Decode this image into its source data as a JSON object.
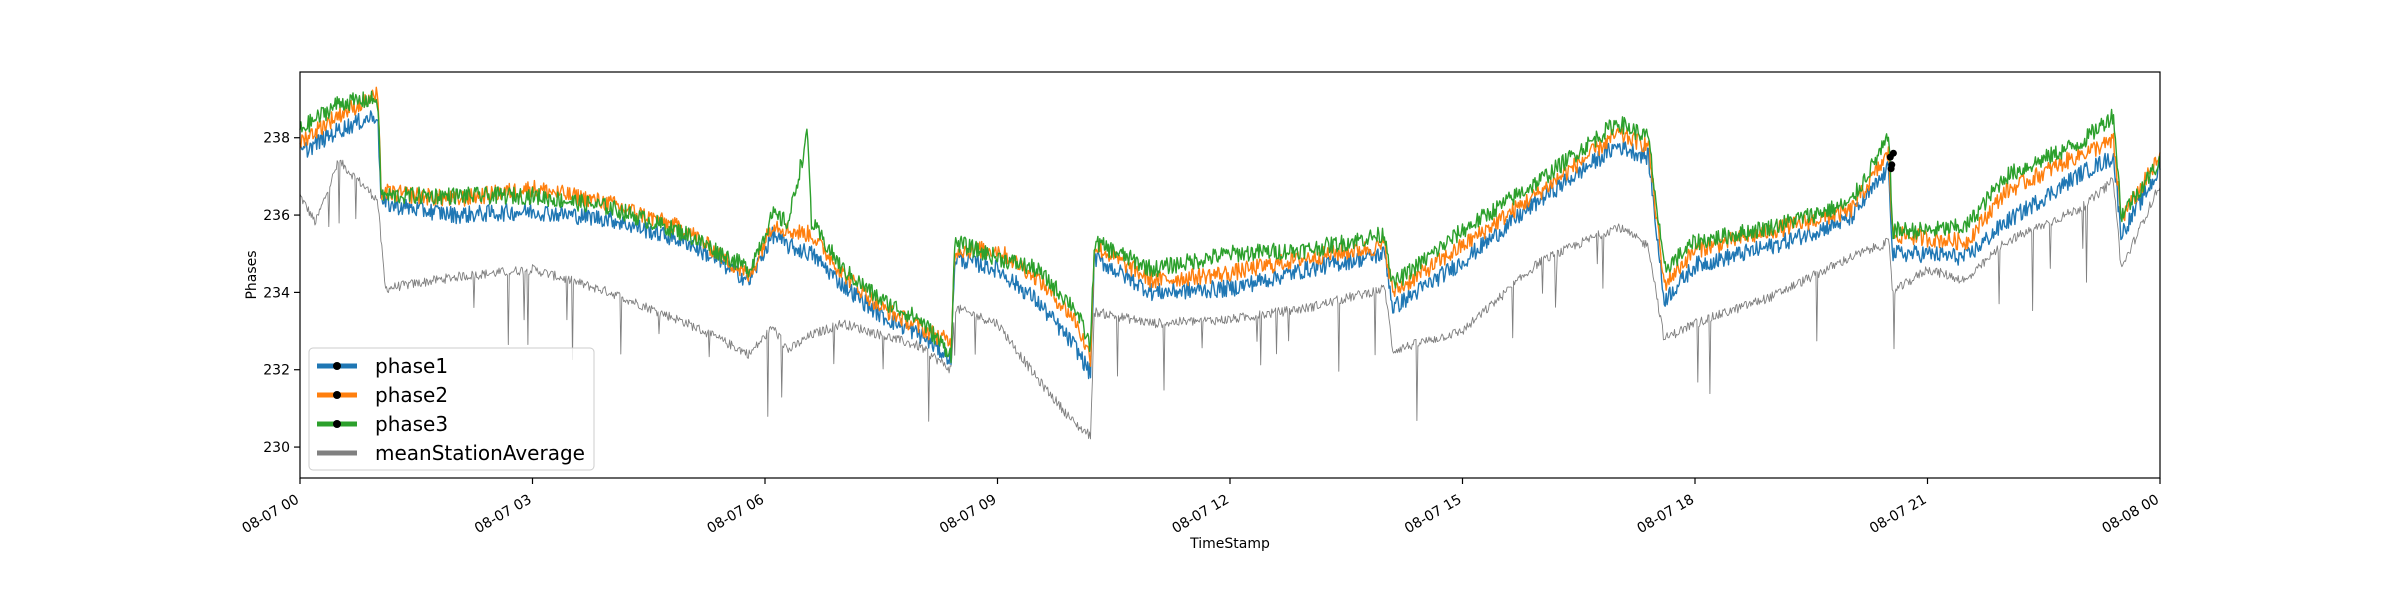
{
  "chart_data": {
    "type": "line",
    "xlabel": "TimeStamp",
    "ylabel": "Phases",
    "xlim": [
      "08-07 00:00",
      "08-08 00:00"
    ],
    "ylim": [
      229.2,
      239.7
    ],
    "x_ticks": [
      {
        "value": 0,
        "label": "08-07 00"
      },
      {
        "value": 3,
        "label": "08-07 03"
      },
      {
        "value": 6,
        "label": "08-07 06"
      },
      {
        "value": 9,
        "label": "08-07 09"
      },
      {
        "value": 12,
        "label": "08-07 12"
      },
      {
        "value": 15,
        "label": "08-07 15"
      },
      {
        "value": 18,
        "label": "08-07 18"
      },
      {
        "value": 21,
        "label": "08-07 21"
      },
      {
        "value": 24,
        "label": "08-08 00"
      }
    ],
    "y_ticks": [
      230,
      232,
      234,
      236,
      238
    ],
    "grid": false,
    "legend_position": "lower-left",
    "x_unit": "hours since 08-07 00:00",
    "series": [
      {
        "name": "phase1",
        "color": "#1f77b4",
        "marker": "black-dot",
        "points": [
          [
            0,
            237.6
          ],
          [
            0.5,
            238.2
          ],
          [
            1.0,
            238.6
          ],
          [
            1.05,
            236.3
          ],
          [
            2.0,
            236.0
          ],
          [
            3.0,
            236.1
          ],
          [
            4.0,
            235.9
          ],
          [
            5.0,
            235.3
          ],
          [
            5.8,
            234.3
          ],
          [
            6.1,
            235.5
          ],
          [
            6.3,
            235.2
          ],
          [
            6.6,
            235.0
          ],
          [
            7.0,
            234.2
          ],
          [
            7.5,
            233.4
          ],
          [
            8.0,
            232.9
          ],
          [
            8.4,
            232.3
          ],
          [
            8.45,
            234.9
          ],
          [
            9.0,
            234.6
          ],
          [
            9.5,
            233.8
          ],
          [
            10.0,
            232.6
          ],
          [
            10.2,
            231.9
          ],
          [
            10.25,
            234.9
          ],
          [
            11.0,
            234.0
          ],
          [
            12.0,
            234.1
          ],
          [
            13.0,
            234.6
          ],
          [
            14.0,
            235.0
          ],
          [
            14.1,
            233.6
          ],
          [
            15.0,
            234.8
          ],
          [
            16.0,
            236.4
          ],
          [
            17.0,
            237.8
          ],
          [
            17.4,
            237.5
          ],
          [
            17.6,
            233.8
          ],
          [
            18.0,
            234.7
          ],
          [
            19.0,
            235.2
          ],
          [
            20.0,
            235.9
          ],
          [
            20.5,
            237.2
          ],
          [
            20.55,
            235.0
          ],
          [
            21.0,
            235.0
          ],
          [
            21.5,
            234.9
          ],
          [
            22.0,
            235.8
          ],
          [
            23.0,
            237.1
          ],
          [
            23.4,
            237.5
          ],
          [
            23.5,
            235.5
          ],
          [
            24.0,
            237.2
          ]
        ]
      },
      {
        "name": "phase2",
        "color": "#ff7f0e",
        "marker": "black-dot",
        "points": [
          [
            0,
            237.9
          ],
          [
            0.5,
            238.6
          ],
          [
            1.0,
            239.1
          ],
          [
            1.05,
            236.6
          ],
          [
            2.0,
            236.4
          ],
          [
            3.0,
            236.7
          ],
          [
            4.0,
            236.3
          ],
          [
            5.0,
            235.6
          ],
          [
            5.8,
            234.4
          ],
          [
            6.1,
            235.8
          ],
          [
            6.3,
            235.6
          ],
          [
            6.6,
            235.5
          ],
          [
            7.0,
            234.5
          ],
          [
            7.5,
            233.6
          ],
          [
            8.0,
            233.1
          ],
          [
            8.4,
            232.7
          ],
          [
            8.45,
            235.1
          ],
          [
            9.0,
            235.1
          ],
          [
            9.5,
            234.4
          ],
          [
            10.0,
            233.3
          ],
          [
            10.2,
            232.3
          ],
          [
            10.25,
            235.2
          ],
          [
            11.0,
            234.3
          ],
          [
            12.0,
            234.5
          ],
          [
            13.0,
            234.9
          ],
          [
            14.0,
            235.2
          ],
          [
            14.1,
            234.0
          ],
          [
            15.0,
            235.2
          ],
          [
            16.0,
            236.6
          ],
          [
            17.0,
            238.1
          ],
          [
            17.4,
            237.8
          ],
          [
            17.6,
            234.2
          ],
          [
            18.0,
            235.1
          ],
          [
            19.0,
            235.6
          ],
          [
            20.0,
            236.1
          ],
          [
            20.5,
            237.6
          ],
          [
            20.55,
            235.5
          ],
          [
            21.0,
            235.4
          ],
          [
            21.5,
            235.3
          ],
          [
            22.0,
            236.6
          ],
          [
            23.0,
            237.6
          ],
          [
            23.4,
            237.9
          ],
          [
            23.5,
            235.9
          ],
          [
            24.0,
            237.5
          ]
        ]
      },
      {
        "name": "phase3",
        "color": "#2ca02c",
        "marker": "black-dot",
        "points": [
          [
            0,
            238.2
          ],
          [
            0.5,
            238.9
          ],
          [
            1.0,
            239.0
          ],
          [
            1.05,
            236.5
          ],
          [
            2.0,
            236.5
          ],
          [
            3.0,
            236.5
          ],
          [
            4.0,
            236.2
          ],
          [
            5.0,
            235.5
          ],
          [
            5.8,
            234.6
          ],
          [
            6.1,
            236.0
          ],
          [
            6.3,
            235.8
          ],
          [
            6.55,
            238.1
          ],
          [
            6.6,
            235.8
          ],
          [
            7.0,
            234.6
          ],
          [
            7.5,
            233.8
          ],
          [
            8.0,
            233.3
          ],
          [
            8.4,
            232.4
          ],
          [
            8.45,
            235.3
          ],
          [
            9.0,
            234.9
          ],
          [
            9.5,
            234.6
          ],
          [
            10.0,
            233.6
          ],
          [
            10.2,
            232.6
          ],
          [
            10.25,
            235.3
          ],
          [
            11.0,
            234.6
          ],
          [
            12.0,
            235.0
          ],
          [
            13.0,
            235.1
          ],
          [
            14.0,
            235.5
          ],
          [
            14.1,
            234.2
          ],
          [
            15.0,
            235.6
          ],
          [
            16.0,
            236.9
          ],
          [
            17.0,
            238.4
          ],
          [
            17.4,
            238.0
          ],
          [
            17.6,
            234.6
          ],
          [
            18.0,
            235.3
          ],
          [
            19.0,
            235.7
          ],
          [
            20.0,
            236.3
          ],
          [
            20.5,
            238.0
          ],
          [
            20.55,
            235.6
          ],
          [
            21.0,
            235.6
          ],
          [
            21.5,
            235.7
          ],
          [
            22.0,
            237.0
          ],
          [
            23.0,
            237.9
          ],
          [
            23.4,
            238.6
          ],
          [
            23.5,
            236.0
          ],
          [
            24.0,
            237.4
          ]
        ]
      },
      {
        "name": "meanStationAverage",
        "color": "#808080",
        "marker": "none",
        "points": [
          [
            0,
            236.5
          ],
          [
            0.2,
            235.8
          ],
          [
            0.5,
            237.4
          ],
          [
            1.0,
            236.4
          ],
          [
            1.1,
            234.1
          ],
          [
            2.0,
            234.4
          ],
          [
            3.0,
            234.6
          ],
          [
            4.0,
            234.0
          ],
          [
            5.0,
            233.2
          ],
          [
            5.8,
            232.4
          ],
          [
            6.1,
            233.1
          ],
          [
            6.3,
            232.5
          ],
          [
            6.6,
            232.9
          ],
          [
            7.0,
            233.2
          ],
          [
            8.0,
            232.6
          ],
          [
            8.4,
            232.0
          ],
          [
            8.45,
            233.6
          ],
          [
            9.0,
            233.2
          ],
          [
            9.5,
            231.8
          ],
          [
            10.0,
            230.6
          ],
          [
            10.2,
            230.3
          ],
          [
            10.25,
            233.5
          ],
          [
            11.0,
            233.2
          ],
          [
            12.0,
            233.3
          ],
          [
            13.0,
            233.6
          ],
          [
            14.0,
            234.1
          ],
          [
            14.1,
            232.5
          ],
          [
            15.0,
            233.0
          ],
          [
            16.0,
            234.8
          ],
          [
            17.0,
            235.7
          ],
          [
            17.4,
            235.2
          ],
          [
            17.6,
            232.8
          ],
          [
            18.0,
            233.2
          ],
          [
            19.0,
            233.9
          ],
          [
            20.0,
            234.9
          ],
          [
            20.5,
            235.3
          ],
          [
            20.55,
            234.0
          ],
          [
            21.0,
            234.6
          ],
          [
            21.5,
            234.3
          ],
          [
            22.0,
            235.3
          ],
          [
            23.0,
            236.2
          ],
          [
            23.4,
            236.9
          ],
          [
            23.5,
            234.6
          ],
          [
            24.0,
            236.8
          ]
        ]
      }
    ]
  }
}
